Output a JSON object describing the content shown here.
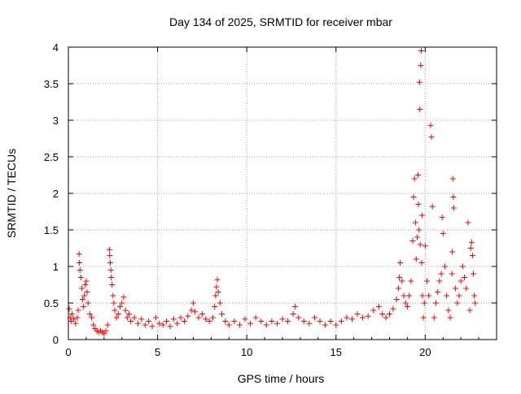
{
  "chart_data": {
    "type": "scatter",
    "title": "Day 134 of 2025, SRMTID for receiver mbar",
    "xlabel": "GPS time / hours",
    "ylabel": "SRMTID / TECUs",
    "xlim": [
      0,
      24
    ],
    "ylim": [
      0,
      4
    ],
    "xticks": [
      0,
      5,
      10,
      15,
      20
    ],
    "yticks": [
      0,
      0.5,
      1,
      1.5,
      2,
      2.5,
      3,
      3.5,
      4
    ],
    "ytick_labels": [
      "0",
      "0.5",
      "1",
      "1.5",
      "2",
      "2.5",
      "3",
      "3.5",
      "4"
    ],
    "grid": true,
    "marker": "+",
    "marker_color": "#ff0000",
    "series": [
      {
        "name": "SRMTID",
        "points": [
          [
            0.05,
            0.42
          ],
          [
            0.1,
            0.3
          ],
          [
            0.15,
            0.25
          ],
          [
            0.2,
            0.35
          ],
          [
            0.3,
            0.28
          ],
          [
            0.4,
            0.22
          ],
          [
            0.5,
            0.3
          ],
          [
            0.55,
            0.4
          ],
          [
            0.6,
            1.17
          ],
          [
            0.62,
            1.05
          ],
          [
            0.65,
            0.95
          ],
          [
            0.7,
            0.85
          ],
          [
            0.75,
            0.7
          ],
          [
            0.8,
            0.55
          ],
          [
            0.85,
            0.45
          ],
          [
            0.9,
            0.6
          ],
          [
            0.95,
            0.75
          ],
          [
            1.0,
            0.8
          ],
          [
            1.05,
            0.65
          ],
          [
            1.1,
            0.5
          ],
          [
            1.2,
            0.35
          ],
          [
            1.3,
            0.3
          ],
          [
            1.4,
            0.2
          ],
          [
            1.5,
            0.15
          ],
          [
            1.6,
            0.12
          ],
          [
            1.7,
            0.1
          ],
          [
            1.8,
            0.12
          ],
          [
            1.9,
            0.1
          ],
          [
            2.0,
            0.08
          ],
          [
            2.1,
            0.12
          ],
          [
            2.2,
            0.2
          ],
          [
            2.3,
            1.23
          ],
          [
            2.32,
            1.15
          ],
          [
            2.35,
            1.05
          ],
          [
            2.38,
            0.95
          ],
          [
            2.4,
            0.85
          ],
          [
            2.45,
            0.75
          ],
          [
            2.5,
            0.6
          ],
          [
            2.55,
            0.5
          ],
          [
            2.6,
            0.4
          ],
          [
            2.7,
            0.3
          ],
          [
            2.8,
            0.35
          ],
          [
            2.9,
            0.45
          ],
          [
            3.0,
            0.5
          ],
          [
            3.1,
            0.58
          ],
          [
            3.2,
            0.4
          ],
          [
            3.3,
            0.3
          ],
          [
            3.4,
            0.35
          ],
          [
            3.5,
            0.25
          ],
          [
            3.7,
            0.3
          ],
          [
            3.9,
            0.22
          ],
          [
            4.1,
            0.28
          ],
          [
            4.3,
            0.2
          ],
          [
            4.5,
            0.25
          ],
          [
            4.7,
            0.18
          ],
          [
            4.9,
            0.3
          ],
          [
            5.1,
            0.22
          ],
          [
            5.3,
            0.2
          ],
          [
            5.5,
            0.25
          ],
          [
            5.7,
            0.18
          ],
          [
            5.9,
            0.28
          ],
          [
            6.1,
            0.22
          ],
          [
            6.3,
            0.3
          ],
          [
            6.5,
            0.25
          ],
          [
            6.7,
            0.32
          ],
          [
            6.9,
            0.4
          ],
          [
            7.0,
            0.5
          ],
          [
            7.1,
            0.38
          ],
          [
            7.3,
            0.3
          ],
          [
            7.5,
            0.35
          ],
          [
            7.7,
            0.28
          ],
          [
            7.9,
            0.25
          ],
          [
            8.1,
            0.3
          ],
          [
            8.2,
            0.45
          ],
          [
            8.25,
            0.6
          ],
          [
            8.3,
            0.72
          ],
          [
            8.35,
            0.82
          ],
          [
            8.4,
            0.65
          ],
          [
            8.5,
            0.5
          ],
          [
            8.6,
            0.35
          ],
          [
            8.8,
            0.25
          ],
          [
            9.0,
            0.2
          ],
          [
            9.3,
            0.25
          ],
          [
            9.6,
            0.2
          ],
          [
            9.9,
            0.28
          ],
          [
            10.2,
            0.22
          ],
          [
            10.5,
            0.3
          ],
          [
            10.8,
            0.25
          ],
          [
            11.1,
            0.2
          ],
          [
            11.4,
            0.25
          ],
          [
            11.7,
            0.22
          ],
          [
            12.0,
            0.28
          ],
          [
            12.3,
            0.25
          ],
          [
            12.6,
            0.35
          ],
          [
            12.7,
            0.45
          ],
          [
            12.9,
            0.3
          ],
          [
            13.2,
            0.25
          ],
          [
            13.5,
            0.22
          ],
          [
            13.8,
            0.3
          ],
          [
            14.1,
            0.25
          ],
          [
            14.4,
            0.2
          ],
          [
            14.7,
            0.25
          ],
          [
            15.0,
            0.2
          ],
          [
            15.3,
            0.25
          ],
          [
            15.6,
            0.3
          ],
          [
            15.9,
            0.28
          ],
          [
            16.2,
            0.35
          ],
          [
            16.5,
            0.3
          ],
          [
            16.8,
            0.32
          ],
          [
            17.1,
            0.4
          ],
          [
            17.4,
            0.45
          ],
          [
            17.6,
            0.35
          ],
          [
            17.8,
            0.3
          ],
          [
            18.0,
            0.35
          ],
          [
            18.2,
            0.42
          ],
          [
            18.4,
            0.55
          ],
          [
            18.5,
            0.7
          ],
          [
            18.55,
            0.85
          ],
          [
            18.6,
            1.05
          ],
          [
            18.7,
            0.8
          ],
          [
            18.8,
            0.6
          ],
          [
            18.9,
            0.5
          ],
          [
            19.0,
            0.45
          ],
          [
            19.1,
            0.6
          ],
          [
            19.2,
            0.8
          ],
          [
            19.3,
            1.35
          ],
          [
            19.35,
            1.95
          ],
          [
            19.4,
            2.2
          ],
          [
            19.45,
            1.6
          ],
          [
            19.5,
            1.1
          ],
          [
            19.55,
            1.4
          ],
          [
            19.6,
            2.25
          ],
          [
            19.62,
            1.85
          ],
          [
            19.65,
            1.5
          ],
          [
            19.68,
            3.52
          ],
          [
            19.7,
            3.15
          ],
          [
            19.72,
            1.3
          ],
          [
            19.75,
            3.75
          ],
          [
            19.78,
            3.95
          ],
          [
            19.8,
            1.05
          ],
          [
            19.82,
            1.7
          ],
          [
            19.85,
            0.6
          ],
          [
            19.9,
            0.3
          ],
          [
            19.95,
            0.5
          ],
          [
            20.0,
            1.28
          ],
          [
            20.1,
            0.8
          ],
          [
            20.2,
            0.6
          ],
          [
            20.3,
            2.93
          ],
          [
            20.35,
            2.77
          ],
          [
            20.4,
            1.82
          ],
          [
            20.5,
            0.3
          ],
          [
            20.6,
            0.5
          ],
          [
            20.7,
            0.65
          ],
          [
            20.8,
            0.8
          ],
          [
            20.9,
            0.9
          ],
          [
            20.95,
            1.67
          ],
          [
            21.0,
            1.45
          ],
          [
            21.1,
            1.0
          ],
          [
            21.2,
            0.6
          ],
          [
            21.3,
            0.4
          ],
          [
            21.4,
            0.3
          ],
          [
            21.5,
            0.9
          ],
          [
            21.52,
            1.2
          ],
          [
            21.55,
            2.2
          ],
          [
            21.58,
            1.95
          ],
          [
            21.6,
            1.8
          ],
          [
            21.7,
            0.7
          ],
          [
            21.8,
            0.5
          ],
          [
            21.9,
            0.6
          ],
          [
            22.0,
            0.8
          ],
          [
            22.1,
            1.0
          ],
          [
            22.2,
            0.85
          ],
          [
            22.3,
            0.7
          ],
          [
            22.4,
            1.6
          ],
          [
            22.5,
            0.4
          ],
          [
            22.55,
            1.25
          ],
          [
            22.6,
            1.33
          ],
          [
            22.65,
            1.15
          ],
          [
            22.7,
            0.9
          ],
          [
            22.75,
            0.6
          ],
          [
            22.8,
            0.5
          ]
        ]
      }
    ]
  }
}
